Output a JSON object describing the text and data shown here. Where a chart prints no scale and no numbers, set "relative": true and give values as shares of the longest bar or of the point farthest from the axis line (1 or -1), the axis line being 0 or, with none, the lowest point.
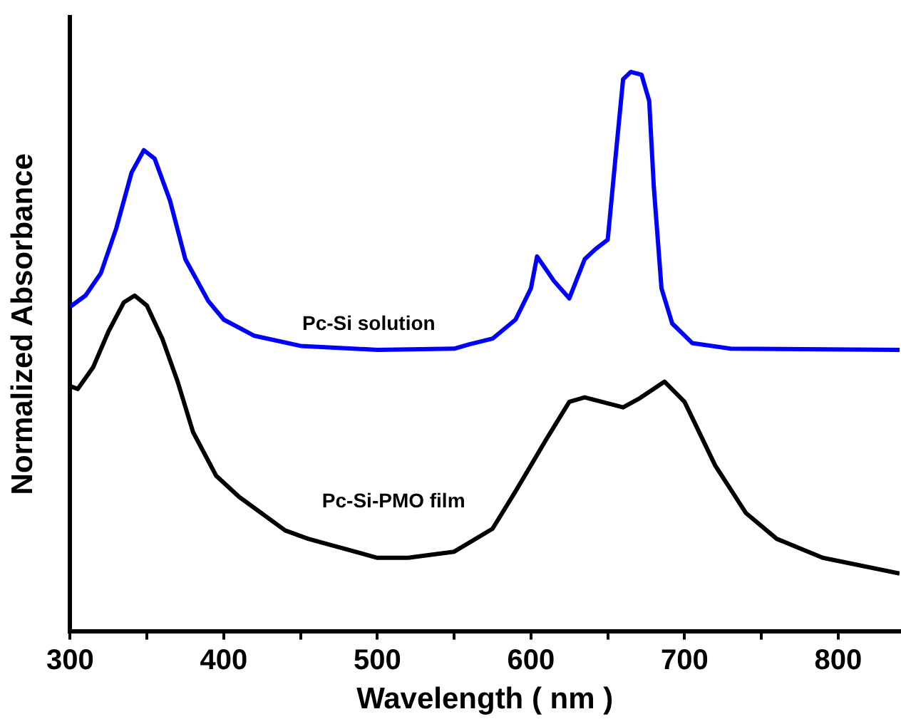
{
  "chart_data": {
    "type": "line",
    "xlabel": "Wavelength ( nm )",
    "ylabel": "Normalized Absorbance",
    "relative": true,
    "marker": "none",
    "line_style": "solid",
    "tick_labels": "x",
    "xlim": [
      300,
      840
    ],
    "xticks": [
      300,
      {
        "value": 350,
        "label": null
      },
      400,
      {
        "value": 450,
        "label": null
      },
      500,
      {
        "value": 550,
        "label": null
      },
      600,
      {
        "value": 650,
        "label": null
      },
      700,
      {
        "value": 750,
        "label": null
      },
      800
    ],
    "series": [
      {
        "name": "Pc-Si solution",
        "color": "#0000ff",
        "x": [
          300,
          310,
          320,
          330,
          340,
          348,
          355,
          365,
          375,
          390,
          400,
          420,
          450,
          500,
          550,
          560,
          575,
          590,
          600,
          604,
          615,
          625,
          635,
          642,
          650,
          655,
          660,
          665,
          672,
          677,
          680,
          685,
          692,
          705,
          730,
          840
        ],
        "values": [
          0.58,
          0.6,
          0.64,
          0.72,
          0.82,
          0.86,
          0.845,
          0.77,
          0.665,
          0.59,
          0.557,
          0.528,
          0.51,
          0.503,
          0.505,
          0.513,
          0.523,
          0.557,
          0.613,
          0.67,
          0.626,
          0.595,
          0.665,
          0.683,
          0.7,
          0.845,
          0.987,
          1,
          0.995,
          0.948,
          0.794,
          0.613,
          0.55,
          0.515,
          0.505,
          0.503
        ]
      },
      {
        "name": "Pc-Si-PMO film",
        "color": "#000000",
        "x": [
          300,
          305,
          315,
          325,
          335,
          342,
          350,
          360,
          370,
          380,
          395,
          410,
          440,
          455,
          500,
          520,
          550,
          575,
          590,
          610,
          625,
          635,
          660,
          670,
          687,
          700,
          720,
          740,
          760,
          790,
          840
        ],
        "values": [
          0.438,
          0.433,
          0.472,
          0.536,
          0.588,
          0.6,
          0.582,
          0.523,
          0.446,
          0.356,
          0.278,
          0.24,
          0.18,
          0.165,
          0.131,
          0.131,
          0.142,
          0.183,
          0.25,
          0.343,
          0.41,
          0.418,
          0.4,
          0.415,
          0.446,
          0.41,
          0.296,
          0.211,
          0.165,
          0.131,
          0.103
        ]
      }
    ]
  }
}
